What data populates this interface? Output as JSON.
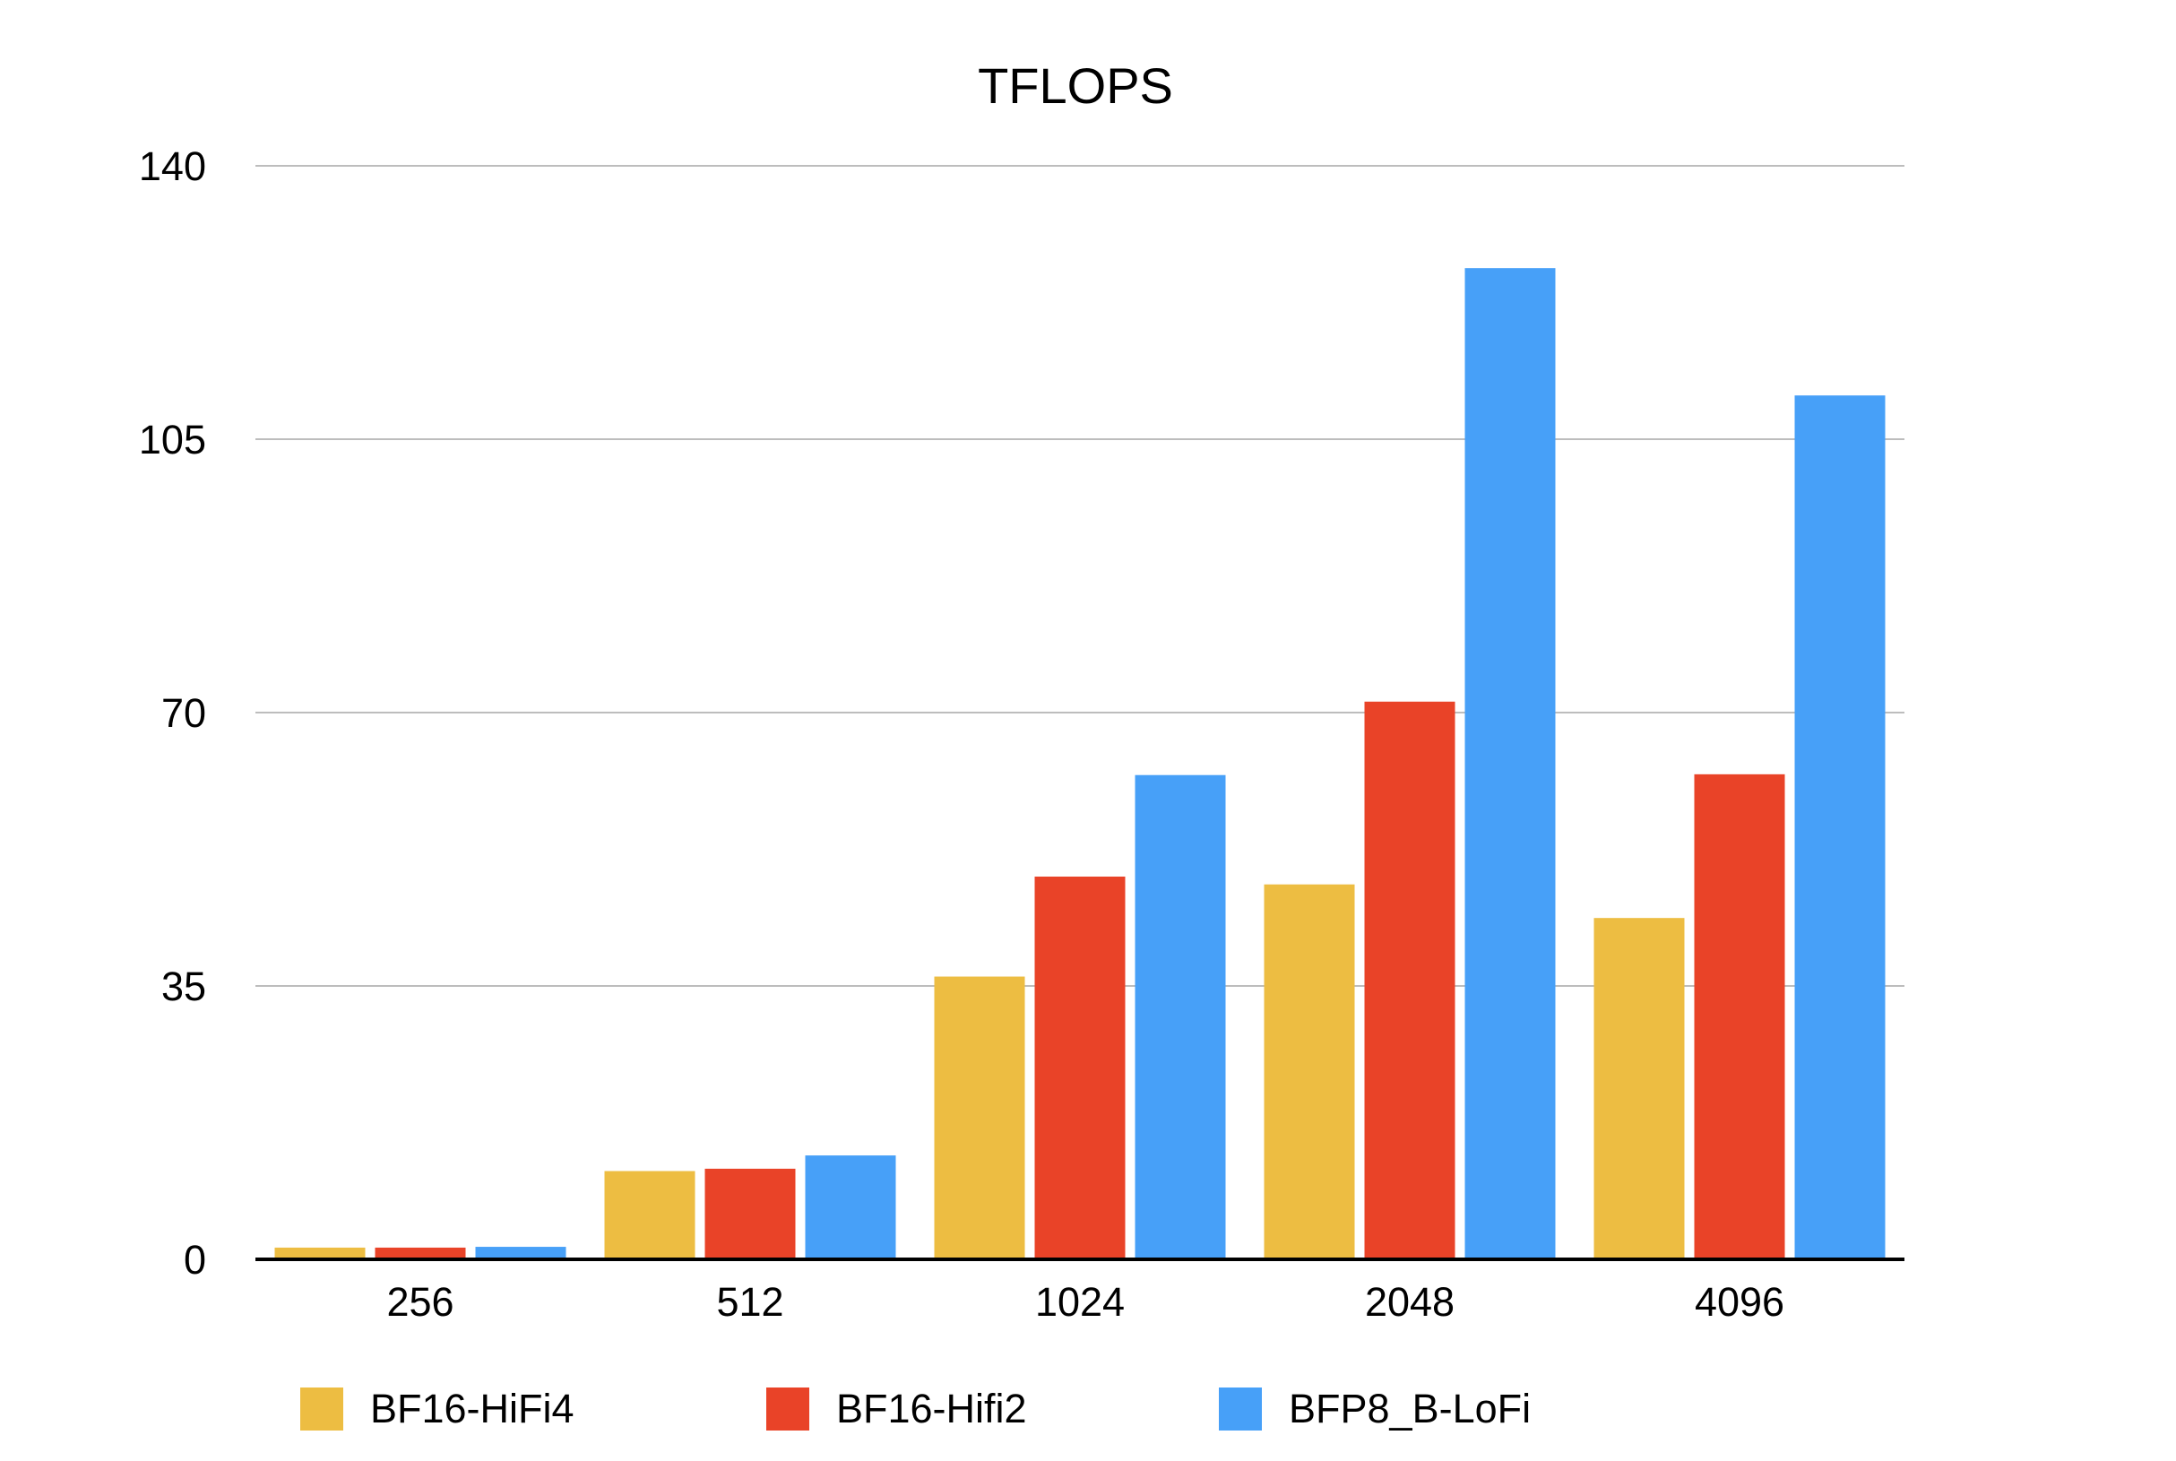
{
  "chart_data": {
    "type": "bar",
    "title": "TFLOPS",
    "xlabel": "",
    "ylabel": "",
    "categories": [
      "256",
      "512",
      "1024",
      "2048",
      "4096"
    ],
    "series": [
      {
        "name": "BF16-HiFi4",
        "color": "#EDBD42",
        "values": [
          1.5,
          11.3,
          36.2,
          48.0,
          43.7
        ]
      },
      {
        "name": "BF16-Hifi2",
        "color": "#E94328",
        "values": [
          1.5,
          11.6,
          49.0,
          71.4,
          62.1
        ]
      },
      {
        "name": "BFP8_B-LoFi",
        "color": "#47A0F8",
        "values": [
          1.6,
          13.3,
          62.0,
          126.9,
          110.6
        ]
      }
    ],
    "ylim": [
      0,
      140
    ],
    "yticks": [
      0,
      35,
      70,
      105,
      140
    ],
    "grid": true,
    "legend_position": "bottom"
  }
}
